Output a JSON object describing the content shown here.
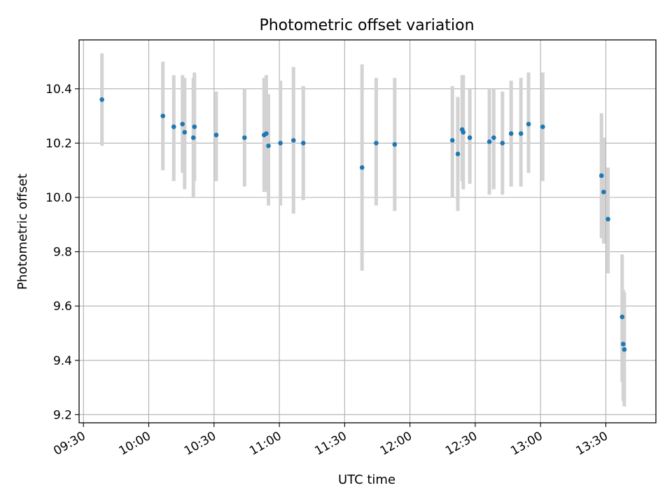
{
  "chart_data": {
    "type": "scatter",
    "title": "Photometric offset variation",
    "xlabel": "UTC time",
    "ylabel": "Photometric offset",
    "xlim": [
      "09:28",
      "13:53"
    ],
    "ylim": [
      9.17,
      10.58
    ],
    "x_ticks": [
      "09:30",
      "10:00",
      "10:30",
      "11:00",
      "11:30",
      "12:00",
      "12:30",
      "13:00",
      "13:30"
    ],
    "y_ticks": [
      "9.2",
      "9.4",
      "9.6",
      "9.8",
      "10.0",
      "10.2",
      "10.4"
    ],
    "grid": true,
    "colors": {
      "point": "#1f77b4",
      "errorbar": "#d3d3d3",
      "grid": "#b0b0b0"
    },
    "points": [
      {
        "x": "09:38:30",
        "y": 10.36,
        "ylo": 10.19,
        "yhi": 10.53
      },
      {
        "x": "10:06:30",
        "y": 10.3,
        "ylo": 10.1,
        "yhi": 10.5
      },
      {
        "x": "10:11:30",
        "y": 10.26,
        "ylo": 10.06,
        "yhi": 10.45
      },
      {
        "x": "10:15:30",
        "y": 10.27,
        "ylo": 10.09,
        "yhi": 10.45
      },
      {
        "x": "10:16:30",
        "y": 10.24,
        "ylo": 10.03,
        "yhi": 10.44
      },
      {
        "x": "10:20:30",
        "y": 10.22,
        "ylo": 10.0,
        "yhi": 10.44
      },
      {
        "x": "10:21:00",
        "y": 10.26,
        "ylo": 10.06,
        "yhi": 10.46
      },
      {
        "x": "10:31:00",
        "y": 10.23,
        "ylo": 10.06,
        "yhi": 10.39
      },
      {
        "x": "10:44:00",
        "y": 10.22,
        "ylo": 10.04,
        "yhi": 10.4
      },
      {
        "x": "10:53:00",
        "y": 10.23,
        "ylo": 10.02,
        "yhi": 10.44
      },
      {
        "x": "10:54:00",
        "y": 10.235,
        "ylo": 10.02,
        "yhi": 10.45
      },
      {
        "x": "10:55:00",
        "y": 10.19,
        "ylo": 9.97,
        "yhi": 10.38
      },
      {
        "x": "11:00:30",
        "y": 10.2,
        "ylo": 9.97,
        "yhi": 10.43
      },
      {
        "x": "11:06:30",
        "y": 10.21,
        "ylo": 9.94,
        "yhi": 10.48
      },
      {
        "x": "11:11:00",
        "y": 10.2,
        "ylo": 9.99,
        "yhi": 10.41
      },
      {
        "x": "11:38:00",
        "y": 10.11,
        "ylo": 9.73,
        "yhi": 10.49
      },
      {
        "x": "11:44:30",
        "y": 10.2,
        "ylo": 9.97,
        "yhi": 10.44
      },
      {
        "x": "11:53:00",
        "y": 10.195,
        "ylo": 9.95,
        "yhi": 10.44
      },
      {
        "x": "12:19:30",
        "y": 10.21,
        "ylo": 10.0,
        "yhi": 10.41
      },
      {
        "x": "12:22:00",
        "y": 10.16,
        "ylo": 9.95,
        "yhi": 10.37
      },
      {
        "x": "12:24:00",
        "y": 10.25,
        "ylo": 10.06,
        "yhi": 10.45
      },
      {
        "x": "12:24:30",
        "y": 10.24,
        "ylo": 10.03,
        "yhi": 10.45
      },
      {
        "x": "12:27:30",
        "y": 10.22,
        "ylo": 10.05,
        "yhi": 10.4
      },
      {
        "x": "12:36:30",
        "y": 10.205,
        "ylo": 10.01,
        "yhi": 10.4
      },
      {
        "x": "12:38:30",
        "y": 10.22,
        "ylo": 10.03,
        "yhi": 10.4
      },
      {
        "x": "12:42:30",
        "y": 10.2,
        "ylo": 10.01,
        "yhi": 10.39
      },
      {
        "x": "12:46:30",
        "y": 10.235,
        "ylo": 10.04,
        "yhi": 10.43
      },
      {
        "x": "12:51:00",
        "y": 10.235,
        "ylo": 10.04,
        "yhi": 10.44
      },
      {
        "x": "12:54:30",
        "y": 10.27,
        "ylo": 10.09,
        "yhi": 10.46
      },
      {
        "x": "13:01:00",
        "y": 10.26,
        "ylo": 10.06,
        "yhi": 10.46
      },
      {
        "x": "13:28:00",
        "y": 10.08,
        "ylo": 9.85,
        "yhi": 10.31
      },
      {
        "x": "13:29:00",
        "y": 10.02,
        "ylo": 9.83,
        "yhi": 10.22
      },
      {
        "x": "13:31:00",
        "y": 9.92,
        "ylo": 9.72,
        "yhi": 10.11
      },
      {
        "x": "13:37:30",
        "y": 9.56,
        "ylo": 9.32,
        "yhi": 9.79
      },
      {
        "x": "13:38:00",
        "y": 9.46,
        "ylo": 9.25,
        "yhi": 9.66
      },
      {
        "x": "13:38:30",
        "y": 9.44,
        "ylo": 9.23,
        "yhi": 9.65
      }
    ]
  }
}
